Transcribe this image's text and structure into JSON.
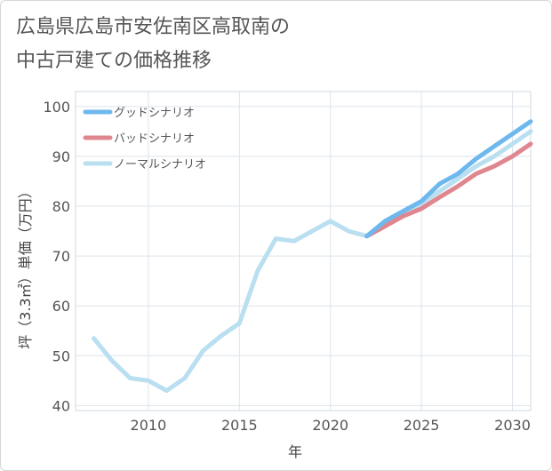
{
  "chart_data": {
    "type": "line",
    "title": "広島県広島市安佐南区高取南の\n中古戸建ての価格推移",
    "xlabel": "年",
    "ylabel": "坪（3.3㎡）単価（万円）",
    "xlim": [
      2006,
      2031
    ],
    "ylim": [
      39,
      103
    ],
    "xticks": [
      2010,
      2015,
      2020,
      2025,
      2030
    ],
    "yticks": [
      40,
      50,
      60,
      70,
      80,
      90,
      100
    ],
    "grid": true,
    "legend_position": "top-left",
    "series": [
      {
        "name": "グッドシナリオ",
        "color": "#6db8ec",
        "x": [
          2022,
          2023,
          2024,
          2025,
          2026,
          2027,
          2028,
          2029,
          2030,
          2031
        ],
        "values": [
          74,
          77,
          79,
          81,
          84.5,
          86.5,
          89.5,
          92,
          94.5,
          97
        ]
      },
      {
        "name": "バッドシナリオ",
        "color": "#e0868f",
        "x": [
          2022,
          2023,
          2024,
          2025,
          2026,
          2027,
          2028,
          2029,
          2030,
          2031
        ],
        "values": [
          74,
          76,
          78,
          79.5,
          81.8,
          84,
          86.5,
          88,
          90,
          92.5
        ]
      },
      {
        "name": "ノーマルシナリオ",
        "color": "#b9dff0",
        "x": [
          2007,
          2008,
          2009,
          2010,
          2011,
          2012,
          2013,
          2014,
          2015,
          2016,
          2017,
          2018,
          2019,
          2020,
          2021,
          2022,
          2023,
          2024,
          2025,
          2026,
          2027,
          2028,
          2029,
          2030,
          2031
        ],
        "values": [
          53.5,
          49,
          45.5,
          45,
          43,
          45.5,
          51,
          54,
          56.5,
          67,
          73.5,
          73,
          75,
          77,
          75,
          74,
          76,
          78.5,
          80.5,
          83,
          85.5,
          88,
          90,
          92.5,
          95
        ]
      }
    ]
  }
}
